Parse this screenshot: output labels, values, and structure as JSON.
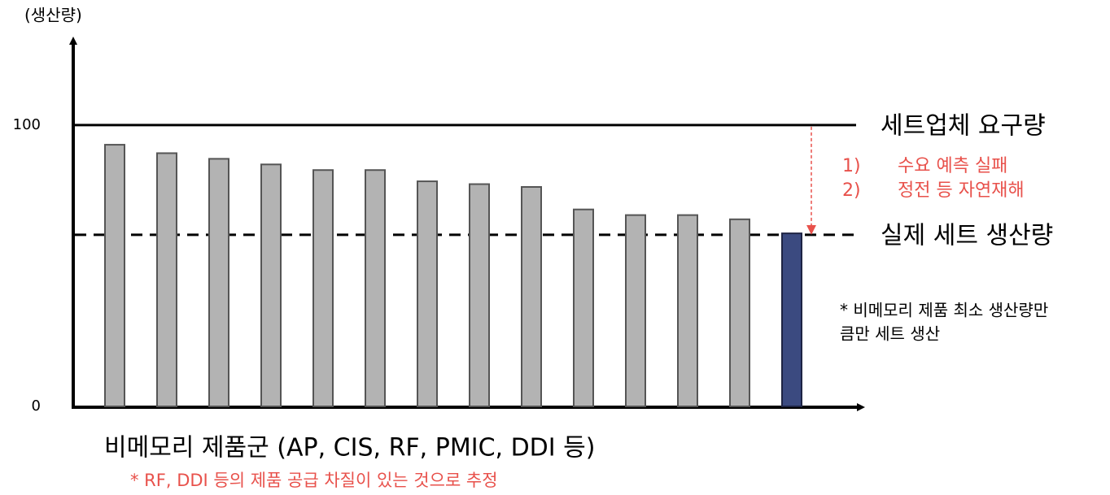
{
  "chart_data": {
    "type": "bar",
    "y_label": "(생산량)",
    "x_label": "비메모리 제품군 (AP, CIS, RF, PMIC, DDI 등)",
    "x_note": "* RF, DDI 등의 제품 공급 차질이 있는 것으로 추정",
    "categories": [
      null,
      null,
      null,
      null,
      null,
      null,
      null,
      null,
      null,
      null,
      null,
      null,
      null,
      null
    ],
    "values": [
      93,
      90,
      88,
      86,
      84,
      84,
      80,
      79,
      78,
      70,
      68,
      68,
      66.5,
      61.5
    ],
    "colors": [
      "#b3b3b3",
      "#b3b3b3",
      "#b3b3b3",
      "#b3b3b3",
      "#b3b3b3",
      "#b3b3b3",
      "#b3b3b3",
      "#b3b3b3",
      "#b3b3b3",
      "#b3b3b3",
      "#b3b3b3",
      "#b3b3b3",
      "#b3b3b3",
      "#3b4a80"
    ],
    "ylim": [
      0,
      130
    ],
    "yticks": [
      0,
      100
    ],
    "reference_lines": [
      {
        "value": 100,
        "label": "세트업체 요구량",
        "style": "solid"
      },
      {
        "value": 61,
        "label": "실제 세트 생산량",
        "style": "dashed"
      }
    ],
    "gap_reasons": [
      {
        "number": "1)",
        "text": "수요 예측 실패"
      },
      {
        "number": "2)",
        "text": "정전 등 자연재해"
      }
    ],
    "side_note": [
      "* 비메모리 제품 최소 생산량만",
      "큼만 세트 생산"
    ]
  }
}
